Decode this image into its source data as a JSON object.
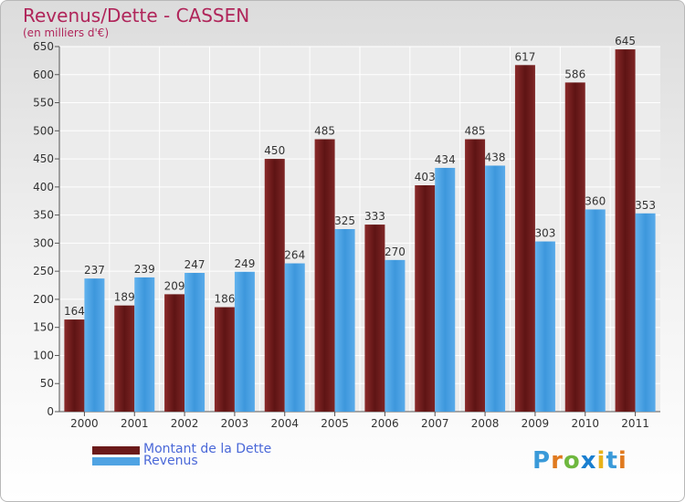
{
  "chart_data": {
    "type": "bar",
    "title": "Revenus/Dette - CASSEN",
    "subtitle": "(en milliers d'€)",
    "categories": [
      "2000",
      "2001",
      "2002",
      "2003",
      "2004",
      "2005",
      "2006",
      "2007",
      "2008",
      "2009",
      "2010",
      "2011"
    ],
    "series": [
      {
        "name": "Montant de la Dette",
        "values": [
          164,
          189,
          209,
          186,
          450,
          485,
          333,
          403,
          485,
          617,
          586,
          645
        ],
        "color": "#6b1a1a"
      },
      {
        "name": "Revenus",
        "values": [
          237,
          239,
          247,
          249,
          264,
          325,
          270,
          434,
          438,
          303,
          360,
          353
        ],
        "color": "#4fa3e3"
      }
    ],
    "ylim": [
      0,
      650
    ],
    "yticks": [
      0,
      50,
      100,
      150,
      200,
      250,
      300,
      350,
      400,
      450,
      500,
      550,
      600,
      650
    ],
    "grid": true,
    "legend_position": "bottom-left"
  },
  "logo": {
    "letters": [
      "P",
      "r",
      "o",
      "x",
      "i",
      "t",
      "i"
    ],
    "colors": [
      "#3a9ad9",
      "#e07a1f",
      "#6fb83f",
      "#1a7fd0",
      "#e8b21a",
      "#3a9ad9",
      "#e07a1f"
    ]
  }
}
